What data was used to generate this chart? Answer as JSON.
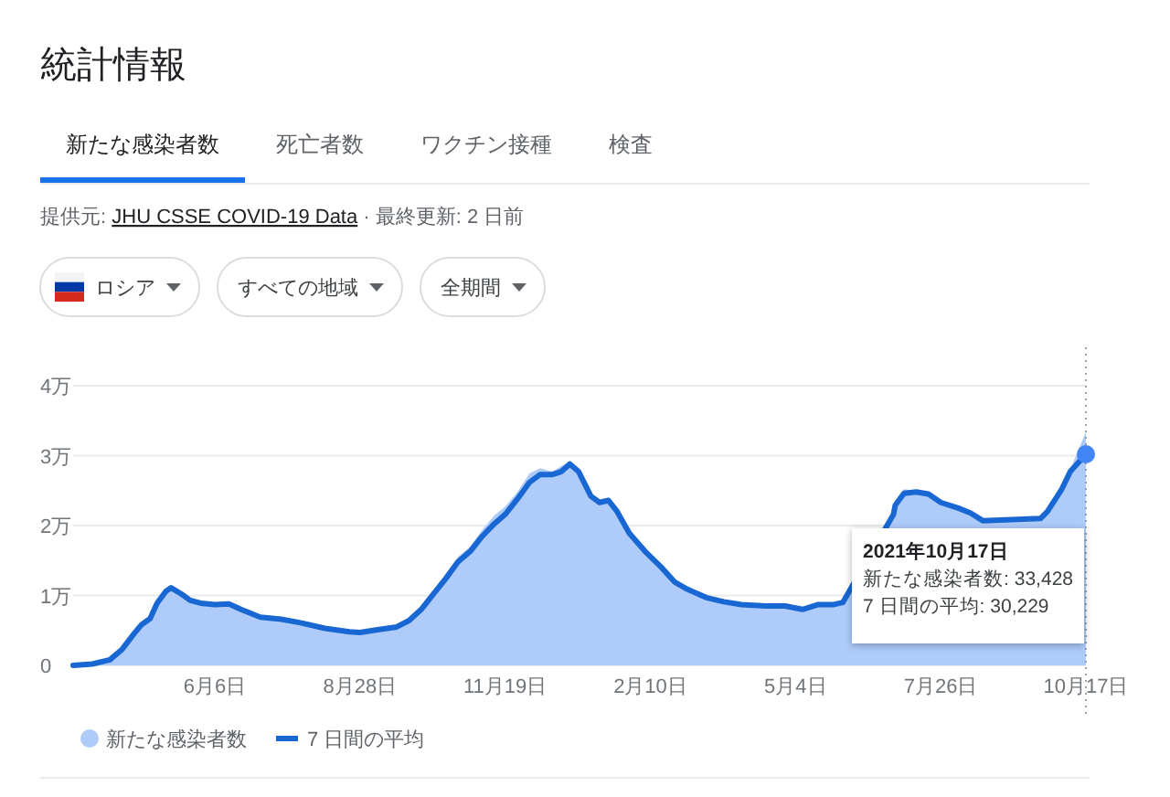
{
  "chart_data": {
    "type": "line",
    "title": "統計情報",
    "subtitle": "提供元: JHU CSSE COVID-19 Data · 最終更新: 2 日前",
    "annotations": [
      "新たな感染者数",
      "死亡者数",
      "ワクチン接種",
      "検査",
      "ロシア",
      "すべての地域",
      "全期間",
      "2021年10月17日",
      "新たな感染者数: 33,428",
      "7 日間の平均: 30,229"
    ],
    "x": [
      "2020-03-17",
      "2020-03-28",
      "2020-04-07",
      "2020-04-14",
      "2020-04-21",
      "2020-04-25",
      "2020-04-30",
      "2020-05-04",
      "2020-05-09",
      "2020-05-12",
      "2020-05-18",
      "2020-05-23",
      "2020-05-29",
      "2020-06-06",
      "2020-06-14",
      "2020-06-21",
      "2020-07-02",
      "2020-07-14",
      "2020-07-25",
      "2020-08-08",
      "2020-08-22",
      "2020-08-28",
      "2020-09-07",
      "2020-09-18",
      "2020-09-25",
      "2020-10-02",
      "2020-10-09",
      "2020-10-16",
      "2020-10-23",
      "2020-10-30",
      "2020-11-06",
      "2020-11-13",
      "2020-11-19",
      "2020-11-26",
      "2020-12-03",
      "2020-12-09",
      "2020-12-16",
      "2020-12-21",
      "2020-12-26",
      "2020-12-31",
      "2021-01-07",
      "2021-01-12",
      "2021-01-17",
      "2021-01-22",
      "2021-01-29",
      "2021-02-07",
      "2021-02-16",
      "2021-02-24",
      "2021-03-03",
      "2021-03-14",
      "2021-03-24",
      "2021-04-03",
      "2021-04-17",
      "2021-04-28",
      "2021-05-08",
      "2021-05-17",
      "2021-05-26",
      "2021-05-31",
      "2021-06-29",
      "2021-06-30",
      "2021-07-05",
      "2021-07-12",
      "2021-07-19",
      "2021-07-26",
      "2021-08-05",
      "2021-08-12",
      "2021-08-19",
      "2021-09-21",
      "2021-09-25",
      "2021-10-03",
      "2021-10-08",
      "2021-10-17"
    ],
    "series": [
      {
        "name": "新たな感染者数",
        "type": "area",
        "color": "#aecbfa",
        "values": [
          0,
          0.02,
          0.09,
          0.25,
          0.5,
          0.6,
          0.7,
          0.95,
          1.08,
          1.15,
          1.0,
          0.92,
          0.89,
          0.88,
          0.88,
          0.79,
          0.68,
          0.65,
          0.6,
          0.52,
          0.48,
          0.47,
          0.52,
          0.57,
          0.66,
          0.84,
          1.08,
          1.3,
          1.55,
          1.7,
          1.94,
          2.15,
          2.27,
          2.48,
          2.75,
          2.82,
          2.77,
          2.85,
          2.92,
          2.75,
          2.4,
          2.35,
          2.36,
          2.18,
          1.88,
          1.62,
          1.4,
          1.18,
          1.09,
          0.97,
          0.91,
          0.88,
          0.86,
          0.85,
          0.81,
          0.88,
          0.88,
          0.92,
          2.2,
          2.35,
          2.52,
          2.5,
          2.45,
          2.35,
          2.25,
          2.2,
          2.08,
          2.12,
          2.25,
          2.55,
          2.8,
          3.34
        ]
      },
      {
        "name": "7 日間の平均",
        "type": "line",
        "color": "#1967d2",
        "values": [
          0,
          0.02,
          0.08,
          0.23,
          0.46,
          0.58,
          0.67,
          0.89,
          1.06,
          1.11,
          1.02,
          0.93,
          0.89,
          0.87,
          0.88,
          0.8,
          0.69,
          0.66,
          0.61,
          0.53,
          0.48,
          0.47,
          0.51,
          0.55,
          0.64,
          0.8,
          1.02,
          1.24,
          1.48,
          1.63,
          1.85,
          2.03,
          2.16,
          2.38,
          2.62,
          2.73,
          2.73,
          2.77,
          2.88,
          2.77,
          2.42,
          2.33,
          2.36,
          2.2,
          1.89,
          1.63,
          1.41,
          1.19,
          1.09,
          0.97,
          0.91,
          0.87,
          0.85,
          0.85,
          0.8,
          0.87,
          0.87,
          0.9,
          2.16,
          2.29,
          2.46,
          2.48,
          2.45,
          2.33,
          2.25,
          2.18,
          2.07,
          2.1,
          2.2,
          2.51,
          2.77,
          3.02
        ]
      },
      {
        "type": "scatter",
        "color": "#4285f4",
        "marker": "circle",
        "x": [
          "2021-10-17"
        ],
        "values": [
          3.02
        ]
      }
    ],
    "xlim": [
      "2020-03-17",
      "2021-10-17"
    ],
    "xticks": [
      {
        "value": "2020-06-06",
        "label": "6月6日"
      },
      {
        "value": "2020-08-28",
        "label": "8月28日"
      },
      {
        "value": "2020-11-19",
        "label": "11月19日"
      },
      {
        "value": "2021-02-10",
        "label": "2月10日"
      },
      {
        "value": "2021-05-04",
        "label": "5月4日"
      },
      {
        "value": "2021-07-26",
        "label": "7月26日"
      },
      {
        "value": "2021-10-17",
        "label": "10月17日"
      }
    ],
    "ylim": [
      0,
      4
    ],
    "yticks": [
      0,
      {
        "value": 1,
        "label": "1万"
      },
      {
        "value": 2,
        "label": "2万"
      },
      {
        "value": 3,
        "label": "3万"
      },
      {
        "value": 4,
        "label": "4万"
      }
    ],
    "ref_lines": [
      {
        "axis": "x",
        "value": "2021-10-17",
        "color": "#9aa0a6",
        "line_style": "dotted"
      }
    ],
    "grid": "y",
    "legend": "bottom left"
  }
}
